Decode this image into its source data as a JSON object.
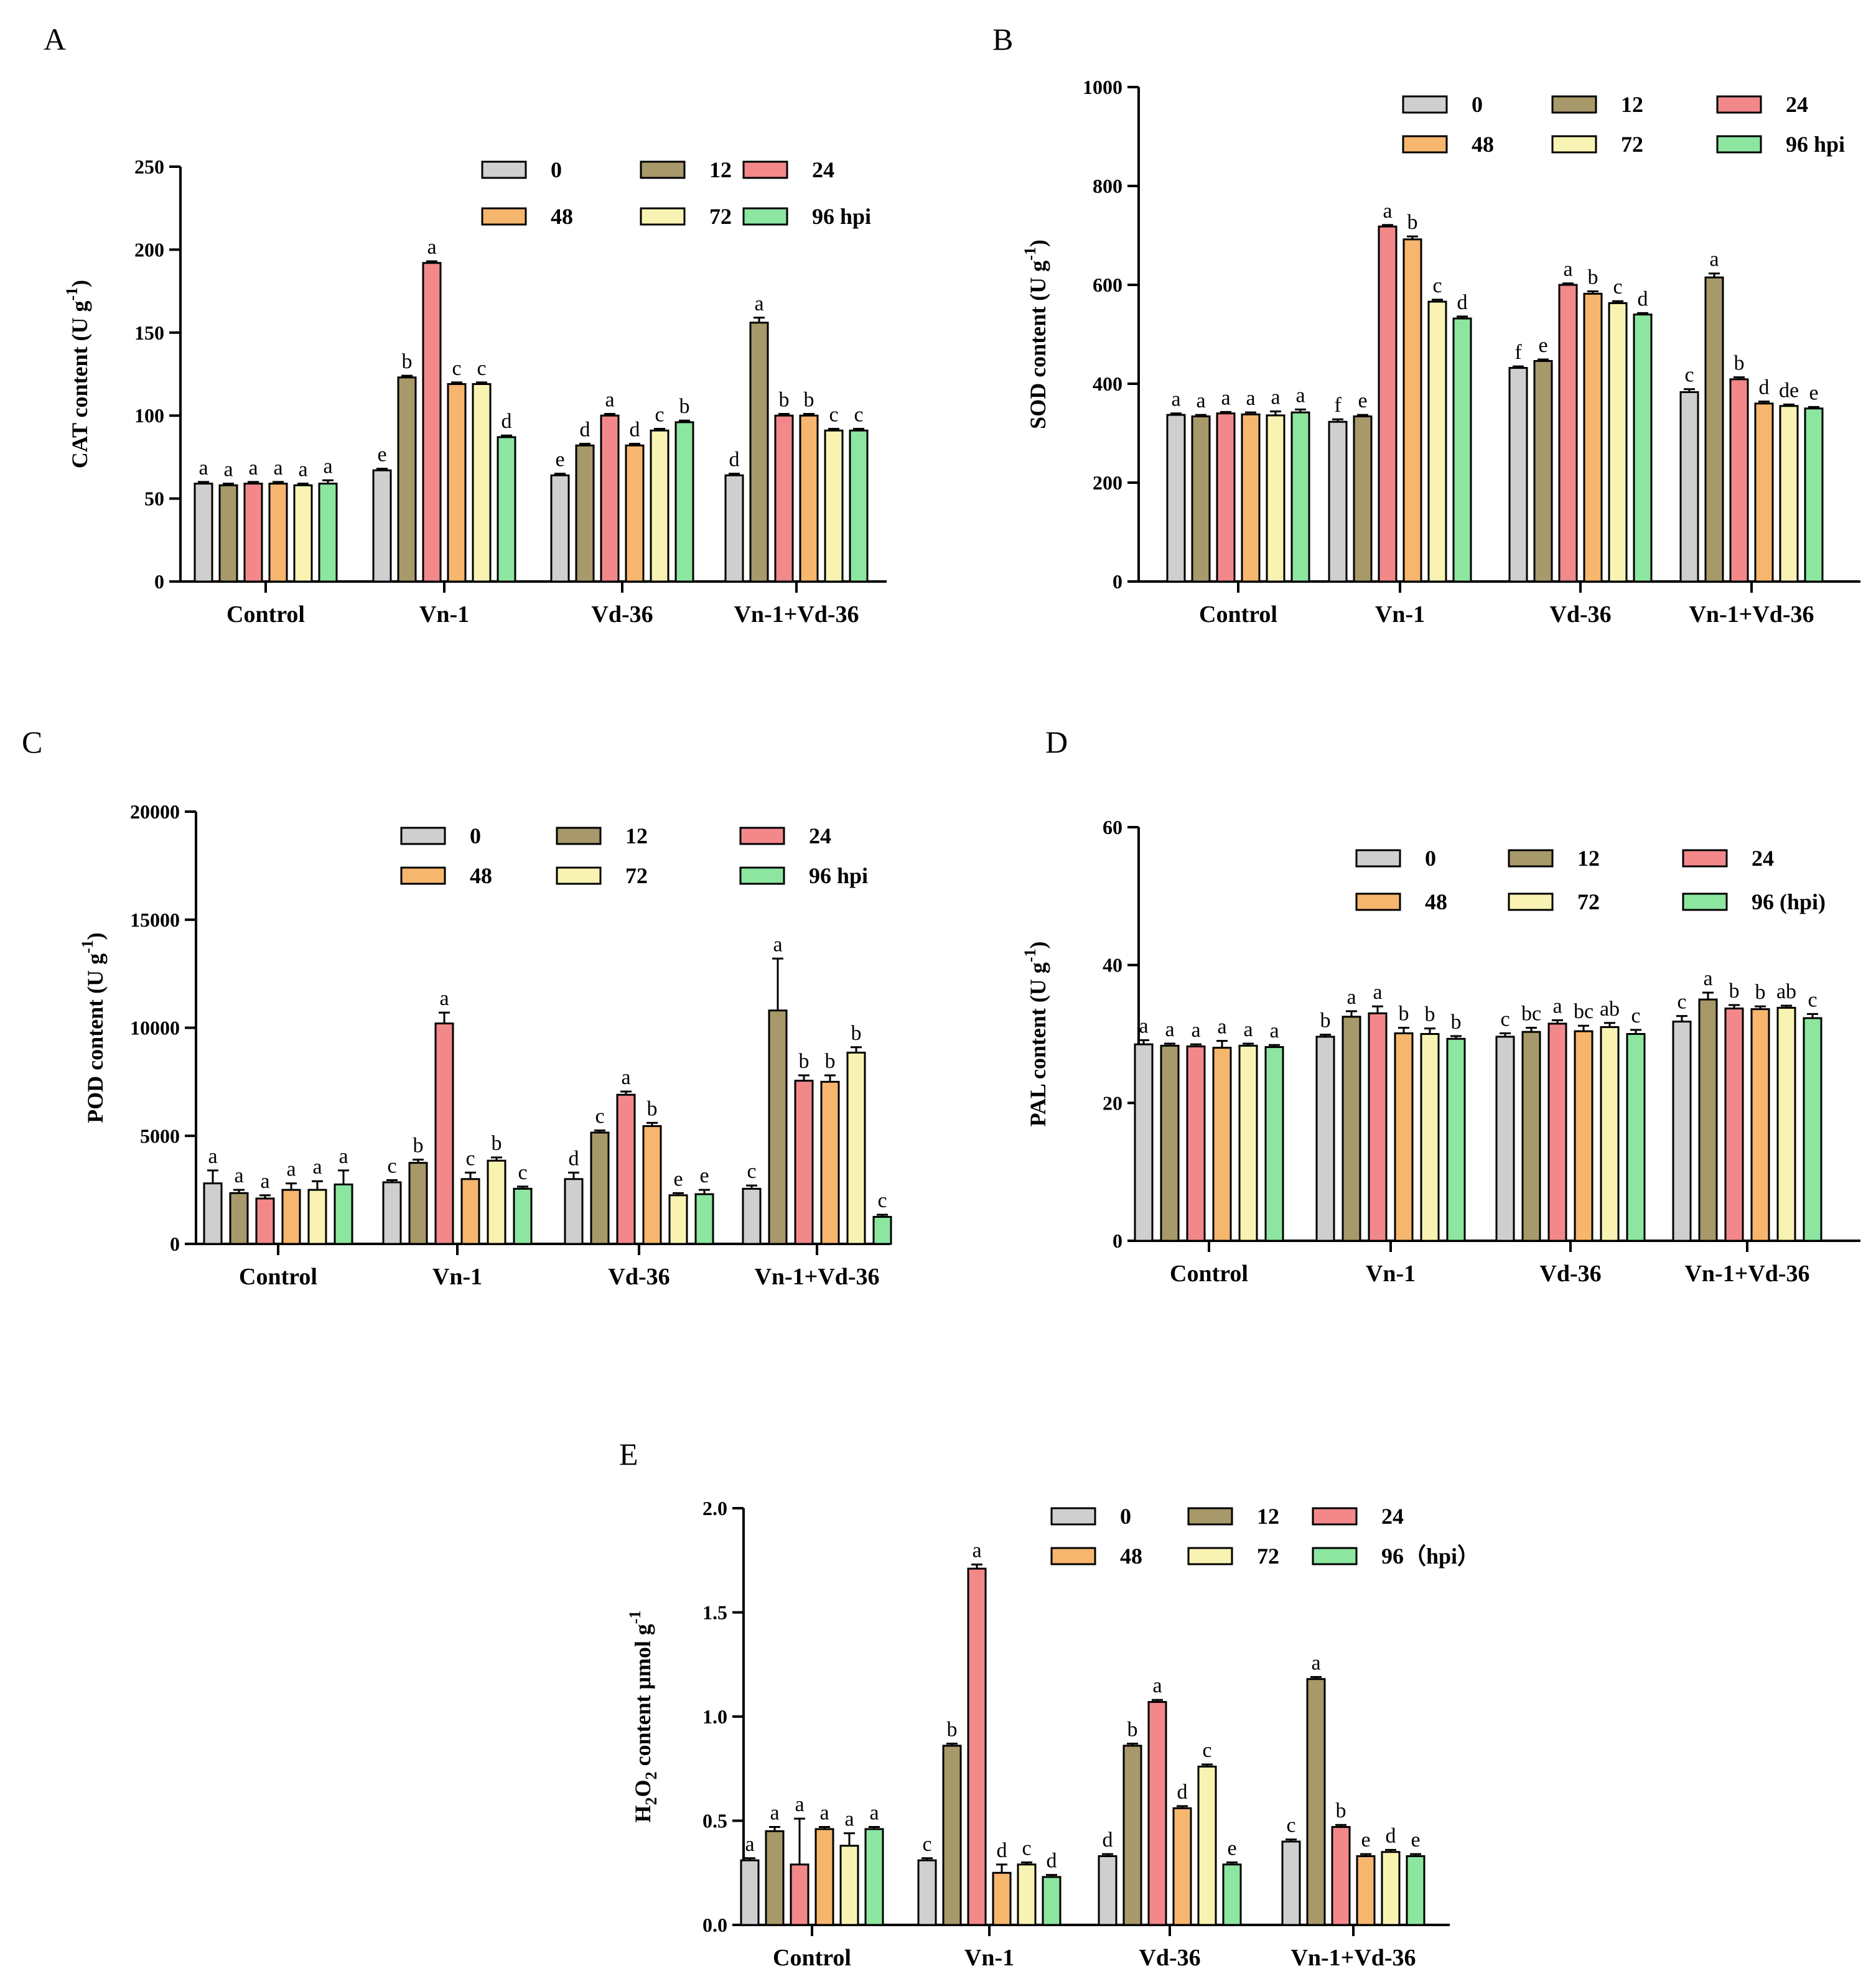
{
  "colors": {
    "0": "#cfcfcf",
    "12": "#a8996a",
    "24": "#f3888b",
    "48": "#f6b66e",
    "72": "#f8f3b2",
    "96": "#8ce6a0"
  },
  "chart_data": [
    {
      "type": "bar",
      "panel": "A",
      "ylabel_main": "CAT content (U g",
      "ylabel_sup": "-1",
      "ylabel_close": ")",
      "ylim": [
        0,
        250
      ],
      "yticks": [
        "0",
        "50",
        "100",
        "150",
        "200",
        "250"
      ],
      "categories": [
        "Control",
        "Vn-1",
        "Vd-36",
        "Vn-1+Vd-36"
      ],
      "series": [
        {
          "name": "0",
          "key": "0",
          "values": [
            59,
            67,
            64,
            64
          ],
          "errors": [
            1,
            1,
            1,
            1
          ],
          "letters": [
            "a",
            "e",
            "e",
            "d"
          ]
        },
        {
          "name": "12",
          "key": "12",
          "values": [
            58,
            123,
            82,
            156
          ],
          "errors": [
            1,
            1,
            1,
            3
          ],
          "letters": [
            "a",
            "b",
            "d",
            "a"
          ]
        },
        {
          "name": "24",
          "key": "24",
          "values": [
            59,
            192,
            100,
            100
          ],
          "errors": [
            1,
            1,
            1,
            1
          ],
          "letters": [
            "a",
            "a",
            "a",
            "b"
          ]
        },
        {
          "name": "48",
          "key": "48",
          "values": [
            59,
            119,
            82,
            100
          ],
          "errors": [
            1,
            1,
            1,
            1
          ],
          "letters": [
            "a",
            "c",
            "d",
            "b"
          ]
        },
        {
          "name": "72",
          "key": "72",
          "values": [
            58,
            119,
            91,
            91
          ],
          "errors": [
            1,
            1,
            1,
            1
          ],
          "letters": [
            "a",
            "c",
            "c",
            "c"
          ]
        },
        {
          "name": "96 hpi",
          "key": "96",
          "values": [
            59,
            87,
            96,
            91
          ],
          "errors": [
            2,
            1,
            1,
            1
          ],
          "letters": [
            "a",
            "d",
            "b",
            "c"
          ]
        }
      ]
    },
    {
      "type": "bar",
      "panel": "B",
      "ylabel_main": "SOD content (U g",
      "ylabel_sup": "-1",
      "ylabel_close": ")",
      "ylim": [
        0,
        1000
      ],
      "yticks": [
        "0",
        "200",
        "400",
        "600",
        "800",
        "1000"
      ],
      "categories": [
        "Control",
        "Vn-1",
        "Vd-36",
        "Vn-1+Vd-36"
      ],
      "series": [
        {
          "name": "0",
          "key": "0",
          "values": [
            337,
            323,
            432,
            383
          ],
          "errors": [
            3,
            5,
            3,
            6
          ],
          "letters": [
            "a",
            "f",
            "f",
            "c"
          ]
        },
        {
          "name": "12",
          "key": "12",
          "values": [
            334,
            334,
            446,
            615
          ],
          "errors": [
            3,
            3,
            3,
            8
          ],
          "letters": [
            "a",
            "e",
            "e",
            "a"
          ]
        },
        {
          "name": "24",
          "key": "24",
          "values": [
            340,
            718,
            600,
            409
          ],
          "errors": [
            3,
            3,
            3,
            4
          ],
          "letters": [
            "a",
            "a",
            "a",
            "b"
          ]
        },
        {
          "name": "48",
          "key": "48",
          "values": [
            338,
            692,
            582,
            360
          ],
          "errors": [
            4,
            6,
            5,
            4
          ],
          "letters": [
            "a",
            "b",
            "b",
            "d"
          ]
        },
        {
          "name": "72",
          "key": "72",
          "values": [
            336,
            566,
            563,
            355
          ],
          "errors": [
            8,
            4,
            4,
            3
          ],
          "letters": [
            "a",
            "c",
            "c",
            "de"
          ]
        },
        {
          "name": "96 hpi",
          "key": "96",
          "values": [
            342,
            532,
            540,
            350
          ],
          "errors": [
            6,
            4,
            3,
            3
          ],
          "letters": [
            "a",
            "d",
            "d",
            "e"
          ]
        }
      ]
    },
    {
      "type": "bar",
      "panel": "C",
      "ylabel_main": "POD content (U g",
      "ylabel_sup": "-1",
      "ylabel_close": ")",
      "ylim": [
        0,
        20000
      ],
      "yticks": [
        "0",
        "5000",
        "10000",
        "15000",
        "20000"
      ],
      "categories": [
        "Control",
        "Vn-1",
        "Vd-36",
        "Vn-1+Vd-36"
      ],
      "series": [
        {
          "name": "0",
          "key": "0",
          "values": [
            2800,
            2850,
            3000,
            2550
          ],
          "errors": [
            600,
            100,
            300,
            150
          ],
          "letters": [
            "a",
            "c",
            "d",
            "c"
          ]
        },
        {
          "name": "12",
          "key": "12",
          "values": [
            2350,
            3750,
            5150,
            10800
          ],
          "errors": [
            150,
            150,
            100,
            2400
          ],
          "letters": [
            "a",
            "b",
            "c",
            "a"
          ]
        },
        {
          "name": "24",
          "key": "24",
          "values": [
            2100,
            10200,
            6900,
            7550
          ],
          "errors": [
            150,
            500,
            150,
            250
          ],
          "letters": [
            "a",
            "a",
            "a",
            "b"
          ]
        },
        {
          "name": "48",
          "key": "48",
          "values": [
            2500,
            3000,
            5450,
            7500
          ],
          "errors": [
            300,
            300,
            150,
            300
          ],
          "letters": [
            "a",
            "c",
            "b",
            "b"
          ]
        },
        {
          "name": "72",
          "key": "72",
          "values": [
            2500,
            3850,
            2250,
            8850
          ],
          "errors": [
            400,
            150,
            100,
            250
          ],
          "letters": [
            "a",
            "b",
            "e",
            "b"
          ]
        },
        {
          "name": "96 hpi",
          "key": "96",
          "values": [
            2750,
            2550,
            2300,
            1250
          ],
          "errors": [
            650,
            100,
            200,
            100
          ],
          "letters": [
            "a",
            "c",
            "e",
            "c"
          ]
        }
      ]
    },
    {
      "type": "bar",
      "panel": "D",
      "ylabel_main": "PAL content (U g",
      "ylabel_sup": "-1",
      "ylabel_close": ")",
      "ylim": [
        0,
        60
      ],
      "yticks": [
        "0",
        "20",
        "40",
        "60"
      ],
      "categories": [
        "Control",
        "Vn-1",
        "Vd-36",
        "Vn-1+Vd-36"
      ],
      "series": [
        {
          "name": "0",
          "key": "0",
          "values": [
            28.5,
            29.6,
            29.6,
            31.8
          ],
          "errors": [
            0.6,
            0.3,
            0.5,
            0.8
          ],
          "letters": [
            "a",
            "b",
            "c",
            "c"
          ]
        },
        {
          "name": "12",
          "key": "12",
          "values": [
            28.3,
            32.5,
            30.3,
            35.0
          ],
          "errors": [
            0.3,
            0.8,
            0.6,
            1.0
          ],
          "letters": [
            "a",
            "a",
            "bc",
            "a"
          ]
        },
        {
          "name": "24",
          "key": "24",
          "values": [
            28.2,
            33.0,
            31.5,
            33.7
          ],
          "errors": [
            0.3,
            1.0,
            0.5,
            0.5
          ],
          "letters": [
            "a",
            "a",
            "a",
            "b"
          ]
        },
        {
          "name": "48",
          "key": "48",
          "values": [
            28.0,
            30.1,
            30.4,
            33.6
          ],
          "errors": [
            1.0,
            0.8,
            0.8,
            0.4
          ],
          "letters": [
            "a",
            "b",
            "bc",
            "b"
          ]
        },
        {
          "name": "72",
          "key": "72",
          "values": [
            28.3,
            30.0,
            31.0,
            33.8
          ],
          "errors": [
            0.3,
            0.8,
            0.6,
            0.3
          ],
          "letters": [
            "a",
            "b",
            "ab",
            "ab"
          ]
        },
        {
          "name": "96 (hpi)",
          "key": "96",
          "values": [
            28.1,
            29.3,
            30.0,
            32.3
          ],
          "errors": [
            0.3,
            0.4,
            0.6,
            0.6
          ],
          "letters": [
            "a",
            "b",
            "c",
            "c"
          ]
        }
      ]
    },
    {
      "type": "bar",
      "panel": "E",
      "ylabel_main": "H",
      "ylabel_sub1": "2",
      "ylabel_mid": "O",
      "ylabel_sub2": "2",
      "ylabel_rest": " content μmol g",
      "ylabel_sup": "-1",
      "ylim": [
        0,
        2.0
      ],
      "yticks": [
        "0.0",
        "0.5",
        "1.0",
        "1.5",
        "2.0"
      ],
      "categories": [
        "Control",
        "Vn-1",
        "Vd-36",
        "Vn-1+Vd-36"
      ],
      "series": [
        {
          "name": "0",
          "key": "0",
          "values": [
            0.31,
            0.31,
            0.33,
            0.4
          ],
          "errors": [
            0.01,
            0.01,
            0.01,
            0.01
          ],
          "letters": [
            "a",
            "c",
            "d",
            "c"
          ]
        },
        {
          "name": "12",
          "key": "12",
          "values": [
            0.45,
            0.86,
            0.86,
            1.18
          ],
          "errors": [
            0.02,
            0.01,
            0.01,
            0.01
          ],
          "letters": [
            "a",
            "b",
            "b",
            "a"
          ]
        },
        {
          "name": "24",
          "key": "24",
          "values": [
            0.29,
            1.71,
            1.07,
            0.47
          ],
          "errors": [
            0.22,
            0.02,
            0.01,
            0.01
          ],
          "letters": [
            "a",
            "a",
            "a",
            "b"
          ]
        },
        {
          "name": "48",
          "key": "48",
          "values": [
            0.46,
            0.25,
            0.56,
            0.33
          ],
          "errors": [
            0.01,
            0.04,
            0.01,
            0.01
          ],
          "letters": [
            "a",
            "d",
            "d",
            "e"
          ]
        },
        {
          "name": "72",
          "key": "72",
          "values": [
            0.38,
            0.29,
            0.76,
            0.35
          ],
          "errors": [
            0.06,
            0.01,
            0.01,
            0.01
          ],
          "letters": [
            "a",
            "c",
            "c",
            "d"
          ]
        },
        {
          "name": "96（hpi）",
          "key": "96",
          "values": [
            0.46,
            0.23,
            0.29,
            0.33
          ],
          "errors": [
            0.01,
            0.01,
            0.01,
            0.01
          ],
          "letters": [
            "a",
            "d",
            "e",
            "e"
          ]
        }
      ]
    }
  ]
}
